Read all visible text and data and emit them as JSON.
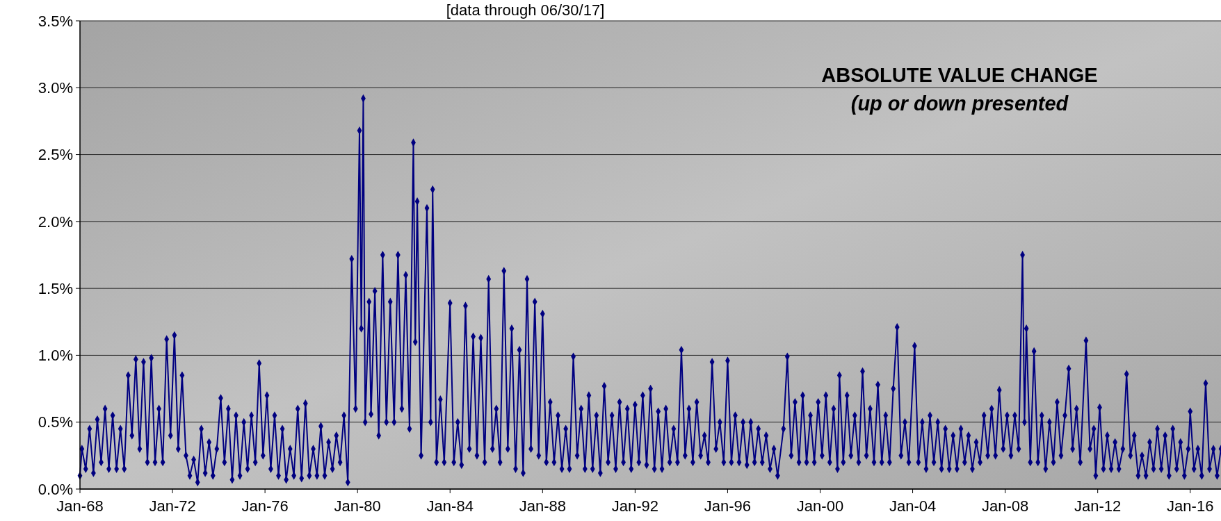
{
  "chart_data": {
    "type": "line",
    "title": "[data through 06/30/17]",
    "annotations": [
      "ABSOLUTE VALUE CHANGE",
      "(up or down presented"
    ],
    "x": [
      "1968-01",
      "1968-02",
      "1968-04",
      "1968-06",
      "1968-08",
      "1968-10",
      "1968-12",
      "1969-02",
      "1969-04",
      "1969-06",
      "1969-08",
      "1969-10",
      "1969-12",
      "1970-02",
      "1970-04",
      "1970-06",
      "1970-08",
      "1970-10",
      "1970-12",
      "1971-02",
      "1971-04",
      "1971-06",
      "1971-08",
      "1971-10",
      "1971-12",
      "1972-02",
      "1972-04",
      "1972-06",
      "1972-08",
      "1972-10",
      "1972-12",
      "1973-02",
      "1973-04",
      "1973-06",
      "1973-08",
      "1973-10",
      "1973-12",
      "1974-02",
      "1974-04",
      "1974-06",
      "1974-08",
      "1974-10",
      "1974-12",
      "1975-02",
      "1975-04",
      "1975-06",
      "1975-08",
      "1975-10",
      "1975-12",
      "1976-02",
      "1976-04",
      "1976-06",
      "1976-08",
      "1976-10",
      "1976-12",
      "1977-02",
      "1977-04",
      "1977-06",
      "1977-08",
      "1977-10",
      "1977-12",
      "1978-02",
      "1978-04",
      "1978-06",
      "1978-08",
      "1978-10",
      "1978-12",
      "1979-02",
      "1979-04",
      "1979-06",
      "1979-08",
      "1979-10",
      "1979-12",
      "1980-02",
      "1980-03",
      "1980-04",
      "1980-05",
      "1980-07",
      "1980-08",
      "1980-10",
      "1980-12",
      "1981-02",
      "1981-04",
      "1981-06",
      "1981-08",
      "1981-10",
      "1981-12",
      "1982-02",
      "1982-04",
      "1982-06",
      "1982-07",
      "1982-08",
      "1982-10",
      "1983-01",
      "1983-03",
      "1983-04",
      "1983-06",
      "1983-08",
      "1983-10",
      "1984-01",
      "1984-03",
      "1984-05",
      "1984-07",
      "1984-09",
      "1984-11",
      "1985-01",
      "1985-03",
      "1985-05",
      "1985-07",
      "1985-09",
      "1985-11",
      "1986-01",
      "1986-03",
      "1986-05",
      "1986-07",
      "1986-09",
      "1986-11",
      "1987-01",
      "1987-03",
      "1987-05",
      "1987-07",
      "1987-09",
      "1987-11",
      "1988-01",
      "1988-03",
      "1988-05",
      "1988-07",
      "1988-09",
      "1988-11",
      "1989-01",
      "1989-03",
      "1989-05",
      "1989-07",
      "1989-09",
      "1989-11",
      "1990-01",
      "1990-03",
      "1990-05",
      "1990-07",
      "1990-09",
      "1990-11",
      "1991-01",
      "1991-03",
      "1991-05",
      "1991-07",
      "1991-09",
      "1991-11",
      "1992-01",
      "1992-03",
      "1992-05",
      "1992-07",
      "1992-09",
      "1992-11",
      "1993-01",
      "1993-03",
      "1993-05",
      "1993-07",
      "1993-09",
      "1993-11",
      "1994-01",
      "1994-03",
      "1994-05",
      "1994-07",
      "1994-09",
      "1994-11",
      "1995-01",
      "1995-03",
      "1995-05",
      "1995-07",
      "1995-09",
      "1995-11",
      "1996-01",
      "1996-03",
      "1996-05",
      "1996-07",
      "1996-09",
      "1996-11",
      "1997-01",
      "1997-03",
      "1997-05",
      "1997-07",
      "1997-09",
      "1997-11",
      "1998-01",
      "1998-03",
      "1998-06",
      "1998-08",
      "1998-10",
      "1998-12",
      "1999-02",
      "1999-04",
      "1999-06",
      "1999-08",
      "1999-10",
      "1999-12",
      "2000-02",
      "2000-04",
      "2000-06",
      "2000-08",
      "2000-10",
      "2000-11",
      "2001-01",
      "2001-03",
      "2001-05",
      "2001-07",
      "2001-09",
      "2001-11",
      "2002-01",
      "2002-03",
      "2002-05",
      "2002-07",
      "2002-09",
      "2002-11",
      "2003-01",
      "2003-03",
      "2003-05",
      "2003-07",
      "2003-09",
      "2003-11",
      "2004-02",
      "2004-04",
      "2004-06",
      "2004-08",
      "2004-10",
      "2004-12",
      "2005-02",
      "2005-04",
      "2005-06",
      "2005-08",
      "2005-10",
      "2005-12",
      "2006-02",
      "2006-04",
      "2006-06",
      "2006-08",
      "2006-10",
      "2006-12",
      "2007-02",
      "2007-04",
      "2007-06",
      "2007-08",
      "2007-10",
      "2007-12",
      "2008-02",
      "2008-04",
      "2008-06",
      "2008-08",
      "2008-10",
      "2008-11",
      "2008-12",
      "2009-02",
      "2009-04",
      "2009-06",
      "2009-08",
      "2009-10",
      "2009-12",
      "2010-02",
      "2010-04",
      "2010-06",
      "2010-08",
      "2010-10",
      "2010-12",
      "2011-02",
      "2011-04",
      "2011-07",
      "2011-09",
      "2011-11",
      "2011-12",
      "2012-02",
      "2012-04",
      "2012-06",
      "2012-08",
      "2012-10",
      "2012-12",
      "2013-02",
      "2013-04",
      "2013-06",
      "2013-08",
      "2013-10",
      "2013-12",
      "2014-02",
      "2014-04",
      "2014-06",
      "2014-08",
      "2014-10",
      "2014-12",
      "2015-02",
      "2015-04",
      "2015-06",
      "2015-08",
      "2015-10",
      "2015-12",
      "2016-01",
      "2016-03",
      "2016-05",
      "2016-07",
      "2016-09",
      "2016-11",
      "2017-01",
      "2017-03",
      "2017-05"
    ],
    "series": [
      {
        "color": "#000080",
        "values": [
          0.1,
          0.3,
          0.15,
          0.45,
          0.12,
          0.52,
          0.2,
          0.6,
          0.15,
          0.55,
          0.15,
          0.45,
          0.15,
          0.85,
          0.4,
          0.97,
          0.3,
          0.95,
          0.2,
          0.98,
          0.2,
          0.6,
          0.2,
          1.12,
          0.4,
          1.15,
          0.3,
          0.85,
          0.25,
          0.1,
          0.22,
          0.05,
          0.45,
          0.12,
          0.35,
          0.1,
          0.3,
          0.68,
          0.2,
          0.6,
          0.07,
          0.55,
          0.1,
          0.5,
          0.15,
          0.55,
          0.2,
          0.94,
          0.25,
          0.7,
          0.15,
          0.55,
          0.1,
          0.45,
          0.07,
          0.3,
          0.1,
          0.6,
          0.08,
          0.64,
          0.1,
          0.3,
          0.1,
          0.47,
          0.1,
          0.35,
          0.15,
          0.4,
          0.2,
          0.55,
          0.05,
          1.72,
          0.6,
          2.68,
          1.2,
          2.92,
          0.5,
          1.4,
          0.56,
          1.48,
          0.4,
          1.75,
          0.5,
          1.4,
          0.5,
          1.75,
          0.6,
          1.6,
          0.45,
          2.59,
          1.1,
          2.15,
          0.25,
          2.1,
          0.5,
          2.24,
          0.2,
          0.67,
          0.2,
          1.39,
          0.2,
          0.5,
          0.18,
          1.37,
          0.3,
          1.14,
          0.25,
          1.13,
          0.2,
          1.57,
          0.3,
          0.6,
          0.2,
          1.63,
          0.3,
          1.2,
          0.15,
          1.04,
          0.12,
          1.57,
          0.3,
          1.4,
          0.25,
          1.31,
          0.2,
          0.65,
          0.2,
          0.55,
          0.15,
          0.45,
          0.15,
          0.99,
          0.25,
          0.6,
          0.15,
          0.7,
          0.15,
          0.55,
          0.12,
          0.77,
          0.2,
          0.55,
          0.15,
          0.65,
          0.2,
          0.6,
          0.15,
          0.63,
          0.2,
          0.7,
          0.18,
          0.75,
          0.15,
          0.58,
          0.15,
          0.6,
          0.2,
          0.45,
          0.2,
          1.04,
          0.25,
          0.6,
          0.2,
          0.65,
          0.25,
          0.4,
          0.2,
          0.95,
          0.3,
          0.5,
          0.2,
          0.96,
          0.2,
          0.55,
          0.2,
          0.5,
          0.18,
          0.5,
          0.2,
          0.45,
          0.2,
          0.4,
          0.15,
          0.3,
          0.1,
          0.45,
          0.99,
          0.25,
          0.65,
          0.2,
          0.7,
          0.2,
          0.55,
          0.2,
          0.65,
          0.25,
          0.7,
          0.2,
          0.6,
          0.15,
          0.85,
          0.2,
          0.7,
          0.25,
          0.55,
          0.2,
          0.88,
          0.25,
          0.6,
          0.2,
          0.78,
          0.2,
          0.55,
          0.2,
          0.75,
          1.21,
          0.25,
          0.5,
          0.2,
          1.07,
          0.2,
          0.5,
          0.15,
          0.55,
          0.2,
          0.5,
          0.15,
          0.45,
          0.15,
          0.4,
          0.15,
          0.45,
          0.2,
          0.4,
          0.15,
          0.35,
          0.2,
          0.55,
          0.25,
          0.6,
          0.25,
          0.74,
          0.3,
          0.55,
          0.25,
          0.55,
          0.3,
          1.75,
          0.5,
          1.2,
          0.2,
          1.03,
          0.2,
          0.55,
          0.15,
          0.5,
          0.2,
          0.65,
          0.25,
          0.55,
          0.9,
          0.3,
          0.6,
          0.2,
          1.11,
          0.3,
          0.45,
          0.1,
          0.61,
          0.15,
          0.4,
          0.15,
          0.35,
          0.15,
          0.3,
          0.86,
          0.25,
          0.4,
          0.1,
          0.25,
          0.1,
          0.35,
          0.15,
          0.45,
          0.15,
          0.4,
          0.1,
          0.45,
          0.15,
          0.35,
          0.1,
          0.3,
          0.58,
          0.15,
          0.3,
          0.1,
          0.79,
          0.15,
          0.3,
          0.1,
          0.3
        ]
      }
    ],
    "xlim": [
      "1968-01",
      "2017-05"
    ],
    "xticks": [
      {
        "value": "1968-01",
        "label": "Jan-68"
      },
      {
        "value": "1972-01",
        "label": "Jan-72"
      },
      {
        "value": "1976-01",
        "label": "Jan-76"
      },
      {
        "value": "1980-01",
        "label": "Jan-80"
      },
      {
        "value": "1984-01",
        "label": "Jan-84"
      },
      {
        "value": "1988-01",
        "label": "Jan-88"
      },
      {
        "value": "1992-01",
        "label": "Jan-92"
      },
      {
        "value": "1996-01",
        "label": "Jan-96"
      },
      {
        "value": "2000-01",
        "label": "Jan-00"
      },
      {
        "value": "2004-01",
        "label": "Jan-04"
      },
      {
        "value": "2008-01",
        "label": "Jan-08"
      },
      {
        "value": "2012-01",
        "label": "Jan-12"
      },
      {
        "value": "2016-01",
        "label": "Jan-16"
      }
    ],
    "ylim": [
      0,
      3.5
    ],
    "yticks": [
      {
        "value": 0,
        "label": "0.0%"
      },
      {
        "value": 0.5,
        "label": "0.5%"
      },
      {
        "value": 1,
        "label": "1.0%"
      },
      {
        "value": 1.5,
        "label": "1.5%"
      },
      {
        "value": 2,
        "label": "2.0%"
      },
      {
        "value": 2.5,
        "label": "2.5%"
      },
      {
        "value": 3,
        "label": "3.0%"
      },
      {
        "value": 3.5,
        "label": "3.5%"
      }
    ],
    "grid": "y",
    "marker": "diamond",
    "line_style": "solid"
  }
}
